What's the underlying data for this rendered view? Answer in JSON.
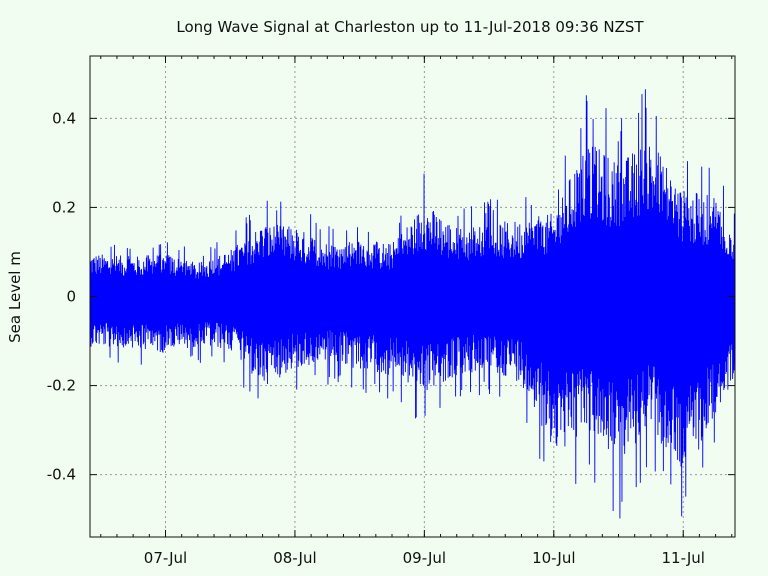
{
  "chart_data": {
    "type": "line",
    "title": "Long Wave Signal at Charleston up to 11-Jul-2018 09:36 NZST",
    "xlabel": "",
    "ylabel": "Sea Level m",
    "x_start": "2018-07-06 10:00",
    "x_end": "2018-07-11 09:36",
    "ylim": [
      -0.54,
      0.54
    ],
    "x_ticks": [
      {
        "label": "07-Jul",
        "x": "2018-07-07 00:00"
      },
      {
        "label": "08-Jul",
        "x": "2018-07-08 00:00"
      },
      {
        "label": "09-Jul",
        "x": "2018-07-09 00:00"
      },
      {
        "label": "10-Jul",
        "x": "2018-07-10 00:00"
      },
      {
        "label": "11-Jul",
        "x": "2018-07-11 00:00"
      }
    ],
    "y_ticks": [
      {
        "label": "0.4",
        "y": 0.4
      },
      {
        "label": "0.2",
        "y": 0.2
      },
      {
        "label": "0",
        "y": 0.0
      },
      {
        "label": "-0.2",
        "y": -0.2
      },
      {
        "label": "-0.4",
        "y": -0.4
      }
    ],
    "grid": true,
    "series": [
      {
        "color": "#0000ff",
        "envelope": {
          "x": [
            "2018-07-06 10:00",
            "2018-07-06 18:00",
            "2018-07-07 00:00",
            "2018-07-07 06:00",
            "2018-07-07 12:00",
            "2018-07-07 18:00",
            "2018-07-08 00:00",
            "2018-07-08 06:00",
            "2018-07-08 12:00",
            "2018-07-08 18:00",
            "2018-07-09 00:00",
            "2018-07-09 06:00",
            "2018-07-09 12:00",
            "2018-07-09 18:00",
            "2018-07-10 00:00",
            "2018-07-10 06:00",
            "2018-07-10 12:00",
            "2018-07-10 18:00",
            "2018-07-11 00:00",
            "2018-07-11 06:00",
            "2018-07-11 09:36"
          ],
          "max": [
            0.13,
            0.12,
            0.13,
            0.1,
            0.14,
            0.22,
            0.21,
            0.16,
            0.17,
            0.16,
            0.28,
            0.21,
            0.22,
            0.23,
            0.25,
            0.47,
            0.4,
            0.48,
            0.32,
            0.3,
            0.21
          ],
          "min": [
            -0.15,
            -0.16,
            -0.17,
            -0.15,
            -0.16,
            -0.27,
            -0.22,
            -0.2,
            -0.22,
            -0.24,
            -0.29,
            -0.24,
            -0.22,
            -0.26,
            -0.48,
            -0.4,
            -0.51,
            -0.4,
            -0.54,
            -0.37,
            -0.25
          ]
        }
      }
    ]
  }
}
